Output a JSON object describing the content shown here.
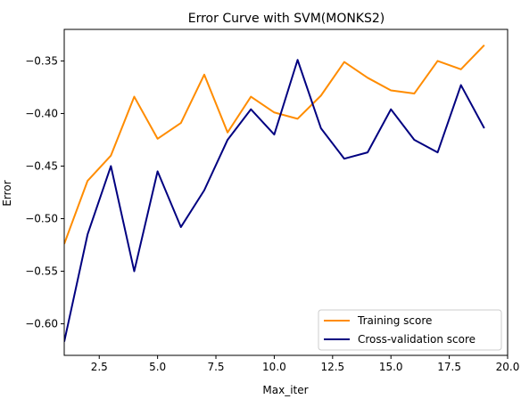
{
  "chart_data": {
    "type": "line",
    "title": "Error Curve with SVM(MONKS2)",
    "xlabel": "Max_iter",
    "ylabel": "Error",
    "xlim": [
      1,
      20
    ],
    "ylim": [
      -0.63,
      -0.32
    ],
    "xticks": [
      2.5,
      5.0,
      7.5,
      10.0,
      12.5,
      15.0,
      17.5,
      20.0
    ],
    "xtick_labels": [
      "2.5",
      "5.0",
      "7.5",
      "10.0",
      "12.5",
      "15.0",
      "17.5",
      "20.0"
    ],
    "yticks": [
      -0.6,
      -0.55,
      -0.5,
      -0.45,
      -0.4,
      -0.35
    ],
    "ytick_labels": [
      "−0.60",
      "−0.55",
      "−0.50",
      "−0.45",
      "−0.40",
      "−0.35"
    ],
    "grid": false,
    "legend_position": "bottom-right",
    "x": [
      1,
      2,
      3,
      4,
      5,
      6,
      7,
      8,
      9,
      10,
      11,
      12,
      13,
      14,
      15,
      16,
      17,
      18,
      19
    ],
    "series": [
      {
        "name": "Training score",
        "color": "#ff8c00",
        "values": [
          -0.524,
          -0.464,
          -0.44,
          -0.384,
          -0.424,
          -0.409,
          -0.363,
          -0.418,
          -0.384,
          -0.399,
          -0.405,
          -0.383,
          -0.351,
          -0.366,
          -0.378,
          -0.381,
          -0.35,
          -0.358,
          -0.335
        ]
      },
      {
        "name": "Cross-validation score",
        "color": "#000080",
        "values": [
          -0.617,
          -0.515,
          -0.45,
          -0.55,
          -0.455,
          -0.508,
          -0.473,
          -0.425,
          -0.396,
          -0.42,
          -0.349,
          -0.414,
          -0.443,
          -0.437,
          -0.396,
          -0.425,
          -0.437,
          -0.373,
          -0.414
        ]
      }
    ]
  }
}
